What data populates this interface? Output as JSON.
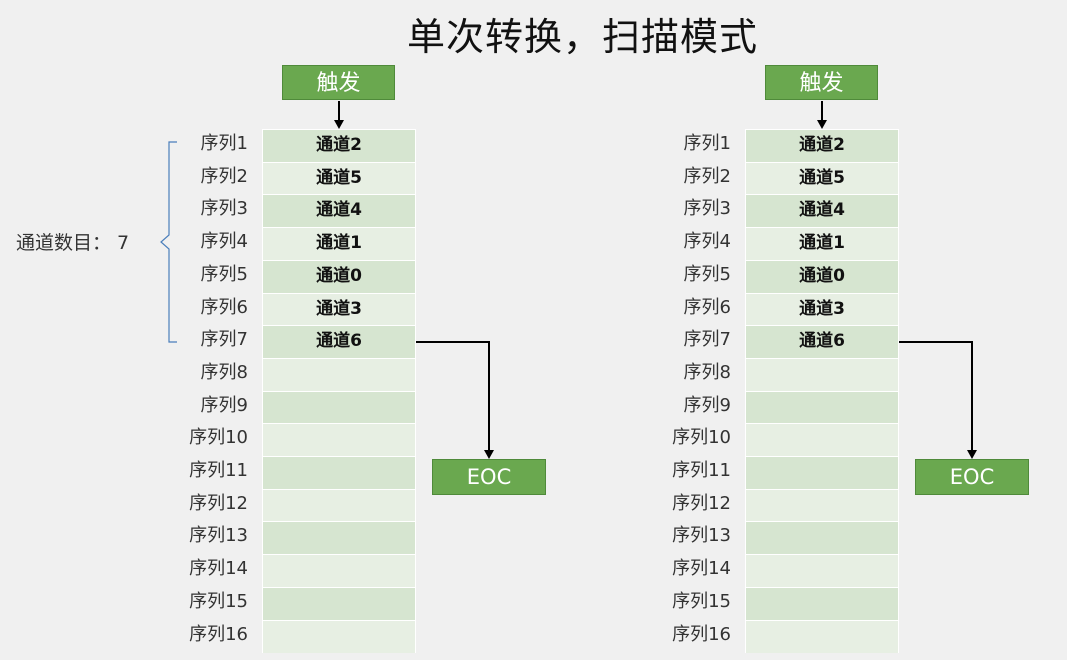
{
  "title": "单次转换，扫描模式",
  "count_label": "通道数目：  7",
  "trigger_label": "触发",
  "eoc_label": "EOC",
  "sequences": [
    "序列1",
    "序列2",
    "序列3",
    "序列4",
    "序列5",
    "序列6",
    "序列7",
    "序列8",
    "序列9",
    "序列10",
    "序列11",
    "序列12",
    "序列13",
    "序列14",
    "序列15",
    "序列16"
  ],
  "channels": [
    "通道2",
    "通道5",
    "通道4",
    "通道1",
    "通道0",
    "通道3",
    "通道6",
    "",
    "",
    "",
    "",
    "",
    "",
    "",
    "",
    ""
  ],
  "colors": {
    "green": "#6aa84f",
    "row_dark": "#d6e5d0",
    "row_light": "#e7efe3",
    "brace": "#4a7ebb"
  }
}
